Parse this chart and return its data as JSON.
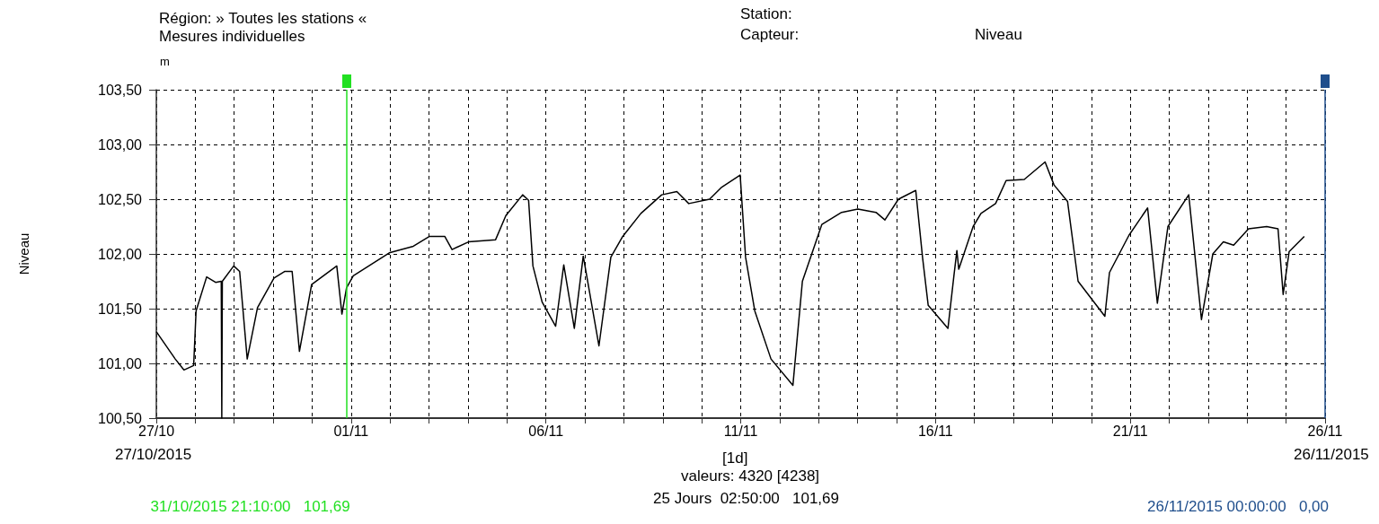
{
  "chart_data": {
    "type": "line",
    "title": "Région: » Toutes les stations «",
    "subtitle": "Mesures individuelles",
    "ylabel": "Niveau",
    "annotations": [
      "Station:",
      "Capteur:",
      "Niveau",
      "m",
      "27/10/2015",
      "26/11/2015",
      "[1d]",
      "valeurs: 4320 [4238]",
      "25 Jours  02:50:00   101,69"
    ],
    "series": [
      {
        "color": "#000000",
        "x": [
          "2015-10-27T00:00",
          "2015-10-27T11:40",
          "2015-10-27T17:00",
          "2015-10-27T23:00",
          "2015-10-28T00:30",
          "2015-10-28T07:00",
          "2015-10-28T12:30",
          "2015-10-28T16:00",
          "2015-10-28T16:20",
          "2015-10-28T16:40",
          "2015-10-28T23:40",
          "2015-10-29T03:20",
          "2015-10-29T08:00",
          "2015-10-29T14:20",
          "2015-10-30T00:30",
          "2015-10-30T07:00",
          "2015-10-30T11:40",
          "2015-10-30T16:10",
          "2015-10-30T23:40",
          "2015-10-31T15:10",
          "2015-10-31T18:20",
          "2015-10-31T20:50",
          "2015-10-31T21:10",
          "2015-11-01T01:20",
          "2015-11-01T23:30",
          "2015-11-02T14:20",
          "2015-11-03T00:20",
          "2015-11-03T09:40",
          "2015-11-03T14:10",
          "2015-11-04T00:20",
          "2015-11-04T17:00",
          "2015-11-04T23:20",
          "2015-11-05T09:40",
          "2015-11-05T13:20",
          "2015-11-05T16:00",
          "2015-11-05T21:40",
          "2015-11-06T06:00",
          "2015-11-06T11:00",
          "2015-11-06T17:30",
          "2015-11-06T23:00",
          "2015-11-07T08:40",
          "2015-11-07T16:00",
          "2015-11-07T23:20",
          "2015-11-08T10:30",
          "2015-11-08T23:20",
          "2015-11-09T08:40",
          "2015-11-09T16:00",
          "2015-11-10T04:50",
          "2015-11-10T12:20",
          "2015-11-10T23:40",
          "2015-11-11T03:00",
          "2015-11-11T08:40",
          "2015-11-11T18:40",
          "2015-11-12T08:10",
          "2015-11-12T14:00",
          "2015-11-13T02:00",
          "2015-11-13T14:10",
          "2015-11-14T00:10",
          "2015-11-14T11:20",
          "2015-11-14T16:50",
          "2015-11-15T01:10",
          "2015-11-15T11:50",
          "2015-11-15T16:00",
          "2015-11-15T19:30",
          "2015-11-16T07:40",
          "2015-11-16T11:20",
          "2015-11-16T13:10",
          "2015-11-16T14:20",
          "2015-11-16T23:10",
          "2015-11-17T04:00",
          "2015-11-17T13:00",
          "2015-11-17T19:30",
          "2015-11-18T06:40",
          "2015-11-18T19:30",
          "2015-11-19T01:00",
          "2015-11-19T09:20",
          "2015-11-19T15:50",
          "2015-11-20T08:20",
          "2015-11-20T11:10",
          "2015-11-20T23:10",
          "2015-11-21T10:40",
          "2015-11-21T16:40",
          "2015-11-21T23:10",
          "2015-11-22T12:00",
          "2015-11-22T19:50",
          "2015-11-23T02:50",
          "2015-11-23T09:20",
          "2015-11-23T15:40",
          "2015-11-24T00:50",
          "2015-11-24T12:00",
          "2015-11-24T19:00",
          "2015-11-24T22:10",
          "2015-11-25T01:50",
          "2015-11-25T11:10"
        ],
        "values": [
          101.29,
          101.04,
          100.94,
          100.98,
          101.48,
          101.79,
          101.74,
          101.75,
          100.5,
          101.75,
          101.89,
          101.84,
          101.04,
          101.51,
          101.78,
          101.84,
          101.84,
          101.11,
          101.72,
          101.89,
          101.45,
          101.66,
          101.69,
          101.8,
          102.01,
          102.07,
          102.16,
          102.16,
          102.04,
          102.11,
          102.13,
          102.35,
          102.54,
          102.49,
          101.89,
          101.56,
          101.34,
          101.9,
          101.32,
          101.98,
          101.16,
          101.97,
          102.16,
          102.37,
          102.54,
          102.57,
          102.46,
          102.5,
          102.61,
          102.72,
          101.97,
          101.48,
          101.04,
          100.8,
          101.75,
          102.27,
          102.38,
          102.41,
          102.38,
          102.31,
          102.5,
          102.58,
          101.97,
          101.53,
          101.32,
          101.8,
          102.03,
          101.86,
          102.25,
          102.37,
          102.46,
          102.67,
          102.68,
          102.84,
          102.63,
          102.48,
          101.75,
          101.43,
          101.83,
          102.17,
          102.42,
          101.55,
          102.25,
          102.54,
          101.4,
          102.0,
          102.11,
          102.08,
          102.23,
          102.25,
          102.23,
          101.63,
          102.02,
          102.16
        ]
      }
    ],
    "xlim": [
      "2015-10-27",
      "2015-11-26"
    ],
    "xticks": [
      {
        "value": "2015-10-27",
        "label": "27/10"
      },
      {
        "value": "2015-10-28",
        "label": null
      },
      {
        "value": "2015-10-29",
        "label": null
      },
      {
        "value": "2015-10-30",
        "label": null
      },
      {
        "value": "2015-10-31",
        "label": null
      },
      {
        "value": "2015-11-01",
        "label": "01/11"
      },
      {
        "value": "2015-11-02",
        "label": null
      },
      {
        "value": "2015-11-03",
        "label": null
      },
      {
        "value": "2015-11-04",
        "label": null
      },
      {
        "value": "2015-11-05",
        "label": null
      },
      {
        "value": "2015-11-06",
        "label": "06/11"
      },
      {
        "value": "2015-11-07",
        "label": null
      },
      {
        "value": "2015-11-08",
        "label": null
      },
      {
        "value": "2015-11-09",
        "label": null
      },
      {
        "value": "2015-11-10",
        "label": null
      },
      {
        "value": "2015-11-11",
        "label": "11/11"
      },
      {
        "value": "2015-11-12",
        "label": null
      },
      {
        "value": "2015-11-13",
        "label": null
      },
      {
        "value": "2015-11-14",
        "label": null
      },
      {
        "value": "2015-11-15",
        "label": null
      },
      {
        "value": "2015-11-16",
        "label": "16/11"
      },
      {
        "value": "2015-11-17",
        "label": null
      },
      {
        "value": "2015-11-18",
        "label": null
      },
      {
        "value": "2015-11-19",
        "label": null
      },
      {
        "value": "2015-11-20",
        "label": null
      },
      {
        "value": "2015-11-21",
        "label": "21/11"
      },
      {
        "value": "2015-11-22",
        "label": null
      },
      {
        "value": "2015-11-23",
        "label": null
      },
      {
        "value": "2015-11-24",
        "label": null
      },
      {
        "value": "2015-11-25",
        "label": null
      },
      {
        "value": "2015-11-26",
        "label": "26/11"
      }
    ],
    "ylim": [
      100.5,
      103.5
    ],
    "yticks": [
      {
        "value": 100.5,
        "label": "100,50"
      },
      {
        "value": 101,
        "label": "101,00"
      },
      {
        "value": 101.5,
        "label": "101,50"
      },
      {
        "value": 102,
        "label": "102,00"
      },
      {
        "value": 102.5,
        "label": "102,50"
      },
      {
        "value": 103,
        "label": "103,00"
      },
      {
        "value": 103.5,
        "label": "103,50"
      }
    ],
    "ref_lines": [
      {
        "axis": "x",
        "value": "2015-10-31T21:10",
        "label": "31/10/2015 21:10:00   101,69",
        "color": "#22e022"
      },
      {
        "axis": "x",
        "value": "2015-11-26T00:00",
        "label": "26/11/2015 00:00:00   0,00",
        "color": "#1f4e8c"
      }
    ],
    "grid": true,
    "marker": "none",
    "line_style": "solid"
  }
}
